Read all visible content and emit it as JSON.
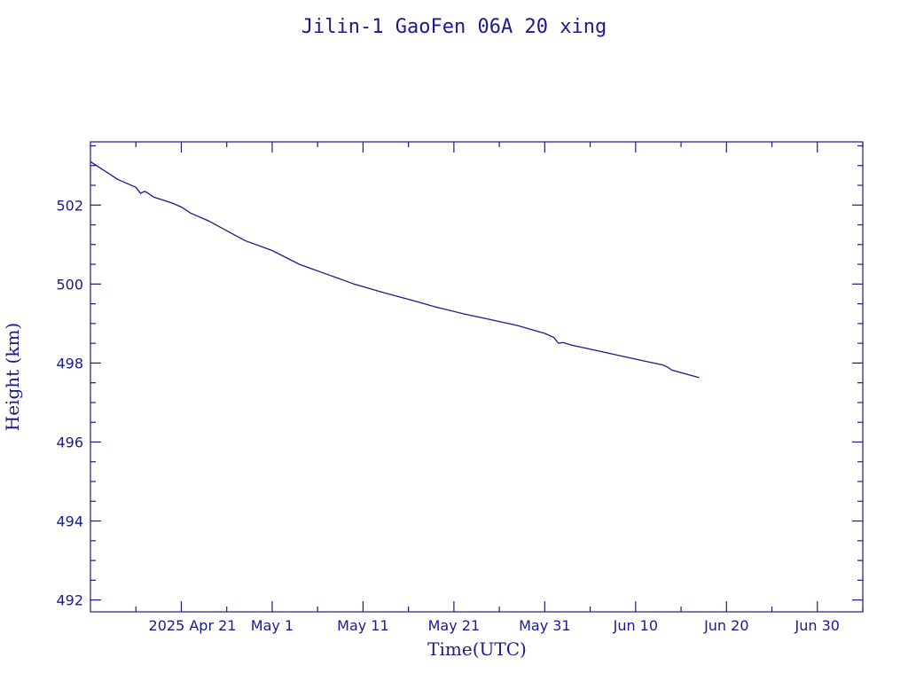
{
  "chart_data": {
    "type": "line",
    "title": "Jilin-1 GaoFen 06A 20 xing",
    "xlabel": "Time(UTC)",
    "ylabel": "Height (km)",
    "x_range": [
      "2025-04-11",
      "2025-07-05"
    ],
    "ylim": [
      491.7,
      503.6
    ],
    "x_ticks": [
      {
        "date": "2025-04-21",
        "label": "2025 Apr 21"
      },
      {
        "date": "2025-05-01",
        "label": "May  1"
      },
      {
        "date": "2025-05-11",
        "label": "May 11"
      },
      {
        "date": "2025-05-21",
        "label": "May 21"
      },
      {
        "date": "2025-05-31",
        "label": "May 31"
      },
      {
        "date": "2025-06-10",
        "label": "Jun 10"
      },
      {
        "date": "2025-06-20",
        "label": "Jun 20"
      },
      {
        "date": "2025-06-30",
        "label": "Jun 30"
      }
    ],
    "x_minor_ticks": [
      "2025-04-16",
      "2025-04-26",
      "2025-05-06",
      "2025-05-16",
      "2025-05-26",
      "2025-06-05",
      "2025-06-15",
      "2025-06-25",
      "2025-07-05"
    ],
    "y_ticks": [
      492,
      494,
      496,
      498,
      500,
      502
    ],
    "y_minor_step": 0.5,
    "grid": false,
    "series": [
      {
        "x": [
          "2025-04-11",
          "2025-04-12",
          "2025-04-13",
          "2025-04-14",
          "2025-04-15",
          "2025-04-16",
          "2025-04-16T12:00",
          "2025-04-17",
          "2025-04-18",
          "2025-04-20",
          "2025-04-21",
          "2025-04-22",
          "2025-04-24",
          "2025-04-26",
          "2025-04-28",
          "2025-05-01",
          "2025-05-04",
          "2025-05-07",
          "2025-05-10",
          "2025-05-13",
          "2025-05-17",
          "2025-05-19",
          "2025-05-22",
          "2025-05-25",
          "2025-05-28",
          "2025-05-31",
          "2025-06-01",
          "2025-06-01T12:00",
          "2025-06-02",
          "2025-06-03",
          "2025-06-05",
          "2025-06-08",
          "2025-06-11",
          "2025-06-13",
          "2025-06-13T12:00",
          "2025-06-14",
          "2025-06-17"
        ],
        "y": [
          503.1,
          502.95,
          502.8,
          502.65,
          502.55,
          502.45,
          502.3,
          502.35,
          502.2,
          502.05,
          501.95,
          501.8,
          501.6,
          501.35,
          501.1,
          500.85,
          500.5,
          500.25,
          500.0,
          499.8,
          499.55,
          499.42,
          499.25,
          499.1,
          498.95,
          498.75,
          498.65,
          498.5,
          498.52,
          498.45,
          498.35,
          498.2,
          498.05,
          497.95,
          497.9,
          497.82,
          497.63
        ]
      }
    ]
  }
}
